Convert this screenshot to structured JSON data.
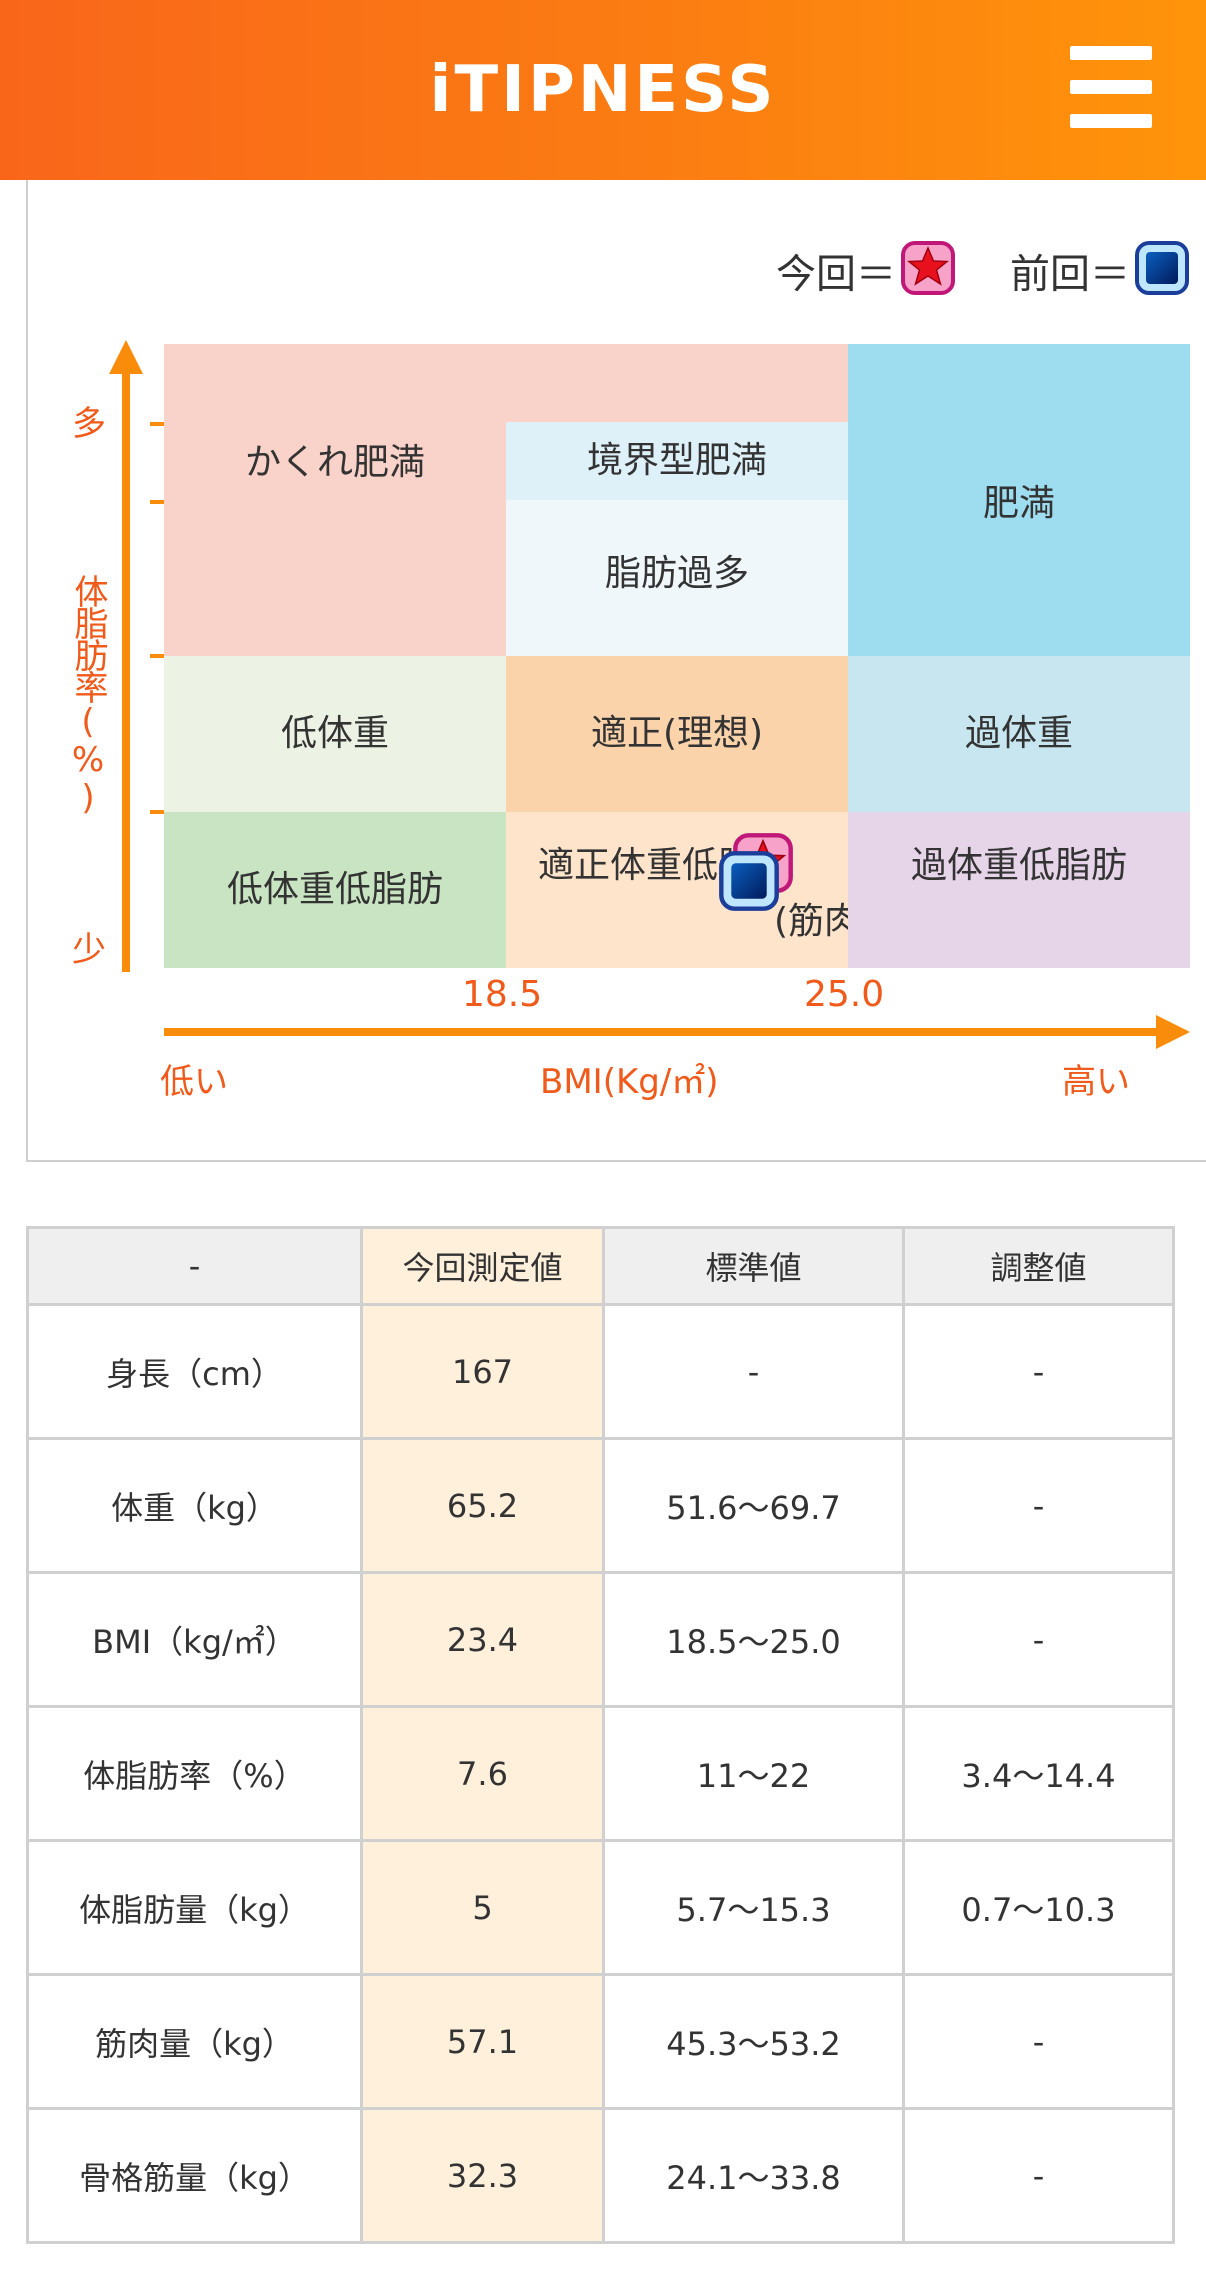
{
  "header": {
    "brand": "iTIPNESS"
  },
  "legend": {
    "current_label": "今回＝",
    "previous_label": "前回＝"
  },
  "chart": {
    "y_axis": {
      "label": "体脂肪率(%)",
      "top": "多",
      "bottom": "少"
    },
    "x_axis": {
      "label": "BMI(Kg/㎡)",
      "left": "低い",
      "right": "高い",
      "ticks": [
        "18.5",
        "25.0"
      ]
    },
    "zones": {
      "hidden_obesity": "かくれ肥満",
      "borderline_obesity": "境界型肥満",
      "excess_fat": "脂肪過多",
      "obesity": "肥満",
      "underweight": "低体重",
      "ideal": "適正(理想)",
      "overweight": "過体重",
      "underweight_low_fat": "低体重低脂肪",
      "ideal_weight_low_fat": [
        "適正体重低脂肪",
        "(筋肉質)"
      ],
      "overweight_low_fat": "過体重低脂肪"
    },
    "colors": {
      "hidden_obesity": "#f9d3c9",
      "borderline_obesity": "#def0f8",
      "excess_fat": "#f0f7fb",
      "obesity": "#9edcef",
      "underweight": "#edf3e4",
      "ideal": "#fbd3ab",
      "overweight": "#c7e6ef",
      "underweight_low_fat": "#c8e4c3",
      "ideal_weight_low_fat": "#fee4cb",
      "overweight_low_fat": "#e6d4e8",
      "axis": "#fa8c0c",
      "axis_text": "#f05a1a"
    }
  },
  "table": {
    "headers": [
      "-",
      "今回測定値",
      "標準値",
      "調整値"
    ],
    "rows": [
      {
        "label": "身長（cm）",
        "current": "167",
        "standard": "-",
        "adjusted": "-"
      },
      {
        "label": "体重（kg）",
        "current": "65.2",
        "standard": "51.6〜69.7",
        "adjusted": "-"
      },
      {
        "label": "BMI（kg/㎡）",
        "current": "23.4",
        "standard": "18.5〜25.0",
        "adjusted": "-"
      },
      {
        "label": "体脂肪率（%）",
        "current": "7.6",
        "standard": "11〜22",
        "adjusted": "3.4〜14.4"
      },
      {
        "label": "体脂肪量（kg）",
        "current": "5",
        "standard": "5.7〜15.3",
        "adjusted": "0.7〜10.3"
      },
      {
        "label": "筋肉量（kg）",
        "current": "57.1",
        "standard": "45.3〜53.2",
        "adjusted": "-"
      },
      {
        "label": "骨格筋量（kg）",
        "current": "32.3",
        "standard": "24.1〜33.8",
        "adjusted": "-"
      }
    ]
  }
}
